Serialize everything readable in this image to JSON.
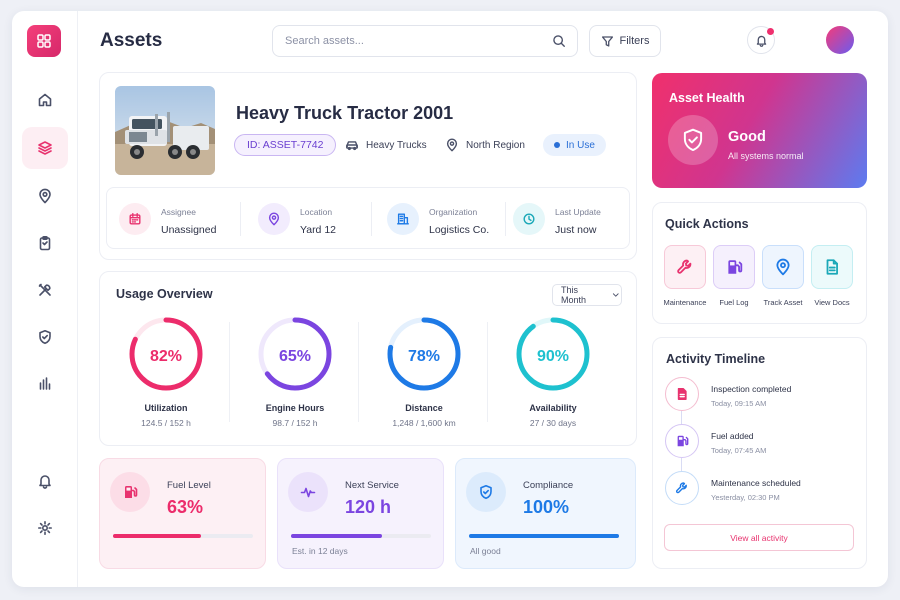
{
  "header": {
    "title": "Assets",
    "search_placeholder": "Search assets...",
    "filters_label": "Filters"
  },
  "sidebar": {
    "items": [
      {
        "name": "home-icon",
        "active": false
      },
      {
        "name": "layers-icon",
        "active": true
      },
      {
        "name": "map-pin-icon",
        "active": false
      },
      {
        "name": "clipboard-icon",
        "active": false
      },
      {
        "name": "tools-icon",
        "active": false
      },
      {
        "name": "shield-icon",
        "active": false
      },
      {
        "name": "bar-chart-icon",
        "active": false
      }
    ],
    "bottom": [
      {
        "name": "bell-icon"
      },
      {
        "name": "settings-icon"
      }
    ]
  },
  "asset": {
    "name": "Heavy Truck Tractor 2001",
    "id": "ID: ASSET-7742",
    "category": "Heavy Trucks",
    "region": "North Region",
    "status": "In Use",
    "info": [
      {
        "label": "Assignee",
        "value": "Unassigned"
      },
      {
        "label": "Location",
        "value": "Yard 12"
      },
      {
        "label": "Organization",
        "value": "Logistics Co."
      },
      {
        "label": "Last Update",
        "value": "Just now"
      }
    ]
  },
  "usage": {
    "title": "Usage Overview",
    "period": "This Month",
    "gauges": [
      {
        "value_label": "82%",
        "percent": 82,
        "name": "Utilization",
        "sub": "124.5 / 152 h",
        "color": "#ec2c6b",
        "track": "#fde7ee"
      },
      {
        "value_label": "65%",
        "percent": 65,
        "name": "Engine Hours",
        "sub": "98.7 / 152 h",
        "color": "#7b45e0",
        "track": "#efe8fc"
      },
      {
        "value_label": "78%",
        "percent": 78,
        "name": "Distance",
        "sub": "1,248 / 1,600 km",
        "color": "#1e7ae6",
        "track": "#e4f0fd"
      },
      {
        "value_label": "90%",
        "percent": 90,
        "name": "Availability",
        "sub": "27 / 30 days",
        "color": "#1ec1cf",
        "track": "#e0f7f9"
      }
    ]
  },
  "stats": [
    {
      "label": "Fuel Level",
      "value": "63%",
      "progress": 63,
      "note": "",
      "color": "#ec2c6b"
    },
    {
      "label": "Next Service",
      "value": "120 h",
      "progress": 65,
      "note": "Est. in 12 days",
      "color": "#7b45e0"
    },
    {
      "label": "Compliance",
      "value": "100%",
      "progress": 100,
      "note": "All good",
      "color": "#1e7ae6"
    }
  ],
  "health": {
    "title": "Asset Health",
    "status": "Good",
    "sub": "All systems normal"
  },
  "quick_actions": {
    "title": "Quick Actions",
    "items": [
      {
        "label": "Maintenance",
        "icon": "wrench-icon"
      },
      {
        "label": "Fuel Log",
        "icon": "fuel-icon"
      },
      {
        "label": "Track Asset",
        "icon": "map-pin-icon"
      },
      {
        "label": "View Docs",
        "icon": "document-icon"
      }
    ]
  },
  "timeline": {
    "title": "Activity Timeline",
    "items": [
      {
        "title": "Inspection completed",
        "time": "Today, 09:15 AM"
      },
      {
        "title": "Fuel added",
        "time": "Today, 07:45 AM"
      },
      {
        "title": "Maintenance scheduled",
        "time": "Yesterday, 02:30 PM"
      }
    ],
    "view_all": "View all activity"
  }
}
